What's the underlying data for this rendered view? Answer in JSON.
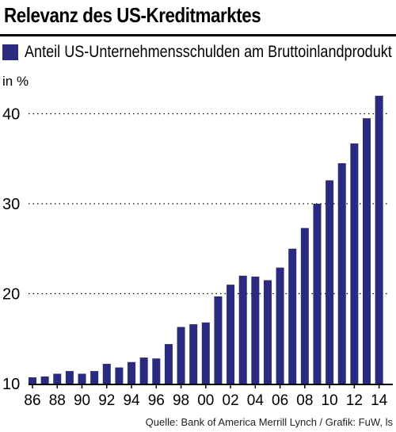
{
  "title": "Relevanz des US-Kreditmarktes",
  "source": "Quelle: Bank of America Merrill Lynch / Grafik: FuW, ls",
  "colors": {
    "bar": "#2b2a7e",
    "axis": "#000000",
    "grid": "#000000",
    "background": "#ffffff"
  },
  "chart_data": {
    "type": "bar",
    "title": "Relevanz des US-Kreditmarktes",
    "ylabel": "in %",
    "xlabel": "",
    "ylim": [
      10,
      42
    ],
    "yticks": [
      10,
      20,
      30,
      40
    ],
    "grid": "horizontal dotted",
    "legend_placement": "top-left",
    "series": [
      {
        "name": "Anteil US-Unternehmensschulden am Bruttoinlandprodukt",
        "values": [
          10.7,
          10.8,
          11.1,
          11.4,
          11.1,
          11.4,
          12.2,
          11.8,
          12.4,
          12.9,
          12.8,
          14.4,
          16.3,
          16.6,
          16.8,
          19.7,
          21.0,
          22.0,
          21.9,
          21.5,
          22.9,
          25.0,
          27.3,
          30.0,
          32.6,
          34.5,
          36.7,
          39.5,
          42.0
        ]
      }
    ],
    "x": [
      1986,
      1987,
      1988,
      1989,
      1990,
      1991,
      1992,
      1993,
      1994,
      1995,
      1996,
      1997,
      1998,
      1999,
      2000,
      2001,
      2002,
      2003,
      2004,
      2005,
      2006,
      2007,
      2008,
      2009,
      2010,
      2011,
      2012,
      2013,
      2014
    ],
    "xtick_labels": [
      "86",
      "88",
      "90",
      "92",
      "94",
      "96",
      "98",
      "00",
      "02",
      "04",
      "06",
      "08",
      "10",
      "12",
      "14"
    ]
  }
}
